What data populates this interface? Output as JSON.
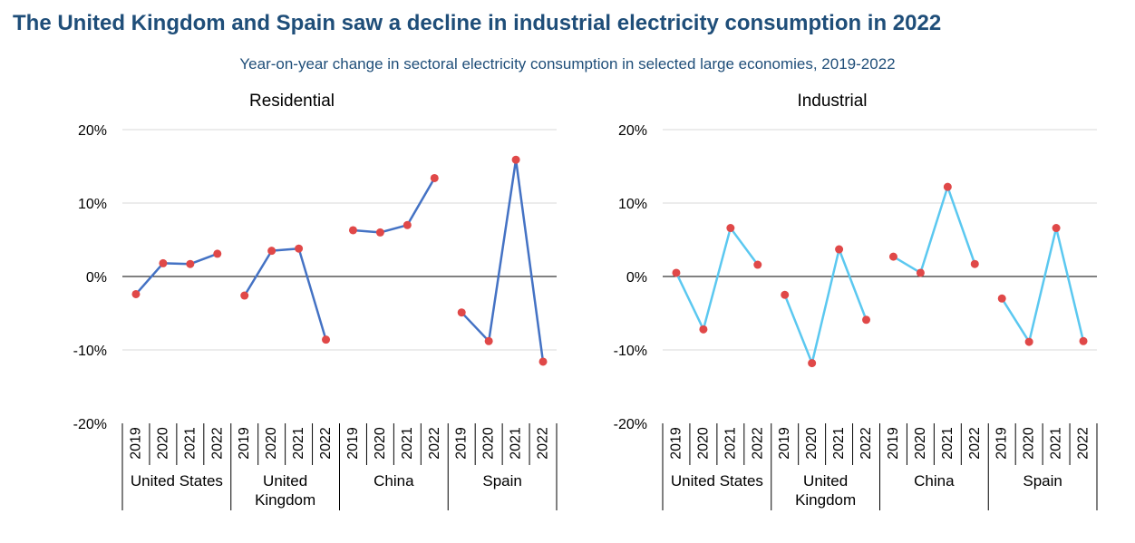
{
  "title": "The United Kingdom and Spain saw a decline in industrial electricity consumption in 2022",
  "subtitle": "Year-on-year change in sectoral electricity consumption in selected large economies, 2019-2022",
  "colors": {
    "residential": "#4472c4",
    "industrial": "#5bc8f0",
    "marker": "#e04848",
    "grid": "#d9d9d9"
  },
  "chart_data": [
    {
      "type": "line",
      "title": "Residential",
      "y_ticks": [
        "20%",
        "10%",
        "0%",
        "-10%",
        "-20%"
      ],
      "ylim": [
        -20,
        20
      ],
      "grid": true,
      "groups": [
        {
          "label": [
            "United States"
          ],
          "years": [
            "2019",
            "2020",
            "2021",
            "2022"
          ],
          "values": [
            -2.4,
            1.8,
            1.7,
            3.1
          ]
        },
        {
          "label": [
            "United",
            "Kingdom"
          ],
          "years": [
            "2019",
            "2020",
            "2021",
            "2022"
          ],
          "values": [
            -2.6,
            3.5,
            3.8,
            -8.6
          ]
        },
        {
          "label": [
            "China"
          ],
          "years": [
            "2019",
            "2020",
            "2021",
            "2022"
          ],
          "values": [
            6.3,
            6.0,
            7.0,
            13.4
          ]
        },
        {
          "label": [
            "Spain"
          ],
          "years": [
            "2019",
            "2020",
            "2021",
            "2022"
          ],
          "values": [
            -4.9,
            -8.8,
            15.9,
            -11.6
          ]
        }
      ]
    },
    {
      "type": "line",
      "title": "Industrial",
      "y_ticks": [
        "20%",
        "10%",
        "0%",
        "-10%",
        "-20%"
      ],
      "ylim": [
        -20,
        20
      ],
      "grid": true,
      "groups": [
        {
          "label": [
            "United States"
          ],
          "years": [
            "2019",
            "2020",
            "2021",
            "2022"
          ],
          "values": [
            0.5,
            -7.2,
            6.6,
            1.6
          ]
        },
        {
          "label": [
            "United",
            "Kingdom"
          ],
          "years": [
            "2019",
            "2020",
            "2021",
            "2022"
          ],
          "values": [
            -2.5,
            -11.8,
            3.7,
            -5.9
          ]
        },
        {
          "label": [
            "China"
          ],
          "years": [
            "2019",
            "2020",
            "2021",
            "2022"
          ],
          "values": [
            2.7,
            0.5,
            12.2,
            1.7
          ]
        },
        {
          "label": [
            "Spain"
          ],
          "years": [
            "2019",
            "2020",
            "2021",
            "2022"
          ],
          "values": [
            -3.0,
            -8.9,
            6.6,
            -8.8
          ]
        }
      ]
    }
  ]
}
